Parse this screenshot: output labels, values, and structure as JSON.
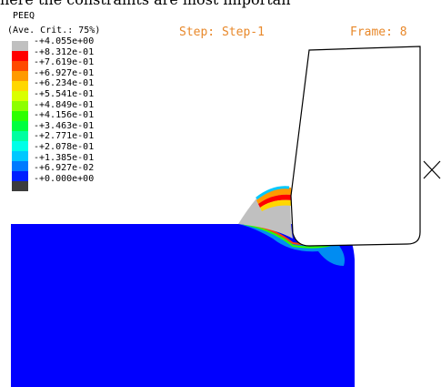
{
  "header": {
    "cut_text": "here the constraints are most importan",
    "variable": "PEEQ",
    "criterion": "(Ave. Crit.: 75%)",
    "step": "Step: Step-1",
    "frame": "Frame: 8"
  },
  "legend": {
    "colors": [
      "#c0c0c0",
      "#ff0000",
      "#ff4a00",
      "#ff9a00",
      "#ffd700",
      "#d9ff00",
      "#8dff00",
      "#2dff00",
      "#00ff40",
      "#00ffa0",
      "#00ffe8",
      "#00c8ff",
      "#007aff",
      "#0020ff",
      "#3c3c3c"
    ],
    "values": [
      "+4.055e+00",
      "+8.312e-01",
      "+7.619e-01",
      "+6.927e-01",
      "+6.234e-01",
      "+5.541e-01",
      "+4.849e-01",
      "+4.156e-01",
      "+3.463e-01",
      "+2.771e-01",
      "+2.078e-01",
      "+1.385e-01",
      "+6.927e-02",
      "+0.000e+00"
    ]
  },
  "viewport": {
    "workpiece_color": "#0000ff",
    "chip_color": "#c0c0c0",
    "tool_color": "#ffffff",
    "marker_icon": "x-marker-icon"
  }
}
